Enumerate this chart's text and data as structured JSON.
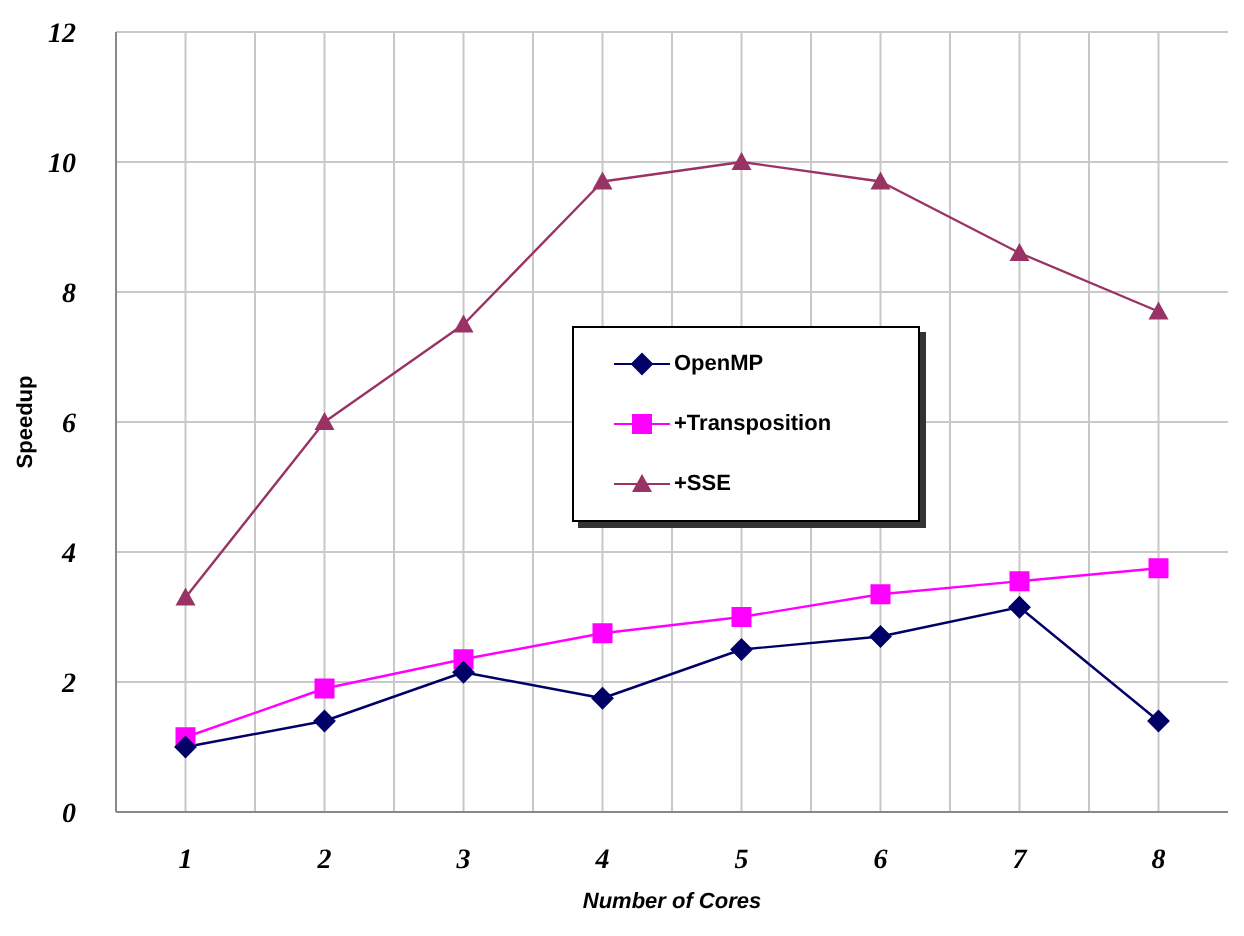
{
  "chart_data": {
    "type": "line",
    "xlabel": "Number of Cores",
    "ylabel": "Speedup",
    "x": [
      1,
      2,
      3,
      4,
      5,
      6,
      7,
      8
    ],
    "xlim": [
      0.5,
      8.5
    ],
    "xticks": [
      1,
      2,
      3,
      4,
      5,
      6,
      7,
      8
    ],
    "ylim": [
      0,
      12
    ],
    "yticks": [
      0,
      2,
      4,
      6,
      8,
      10,
      12
    ],
    "grid": true,
    "legend": "center",
    "series": [
      {
        "name": "OpenMP",
        "color": "#000066",
        "marker": "diamond",
        "values": [
          1.0,
          1.4,
          2.15,
          1.75,
          2.5,
          2.7,
          3.15,
          1.4
        ]
      },
      {
        "name": "+Transposition",
        "color": "#ff00ff",
        "marker": "square",
        "values": [
          1.15,
          1.9,
          2.35,
          2.75,
          3.0,
          3.35,
          3.55,
          3.75
        ]
      },
      {
        "name": "+SSE",
        "color": "#993366",
        "marker": "triangle",
        "values": [
          3.3,
          6.0,
          7.5,
          9.7,
          10.0,
          9.7,
          8.6,
          7.7
        ]
      }
    ]
  }
}
